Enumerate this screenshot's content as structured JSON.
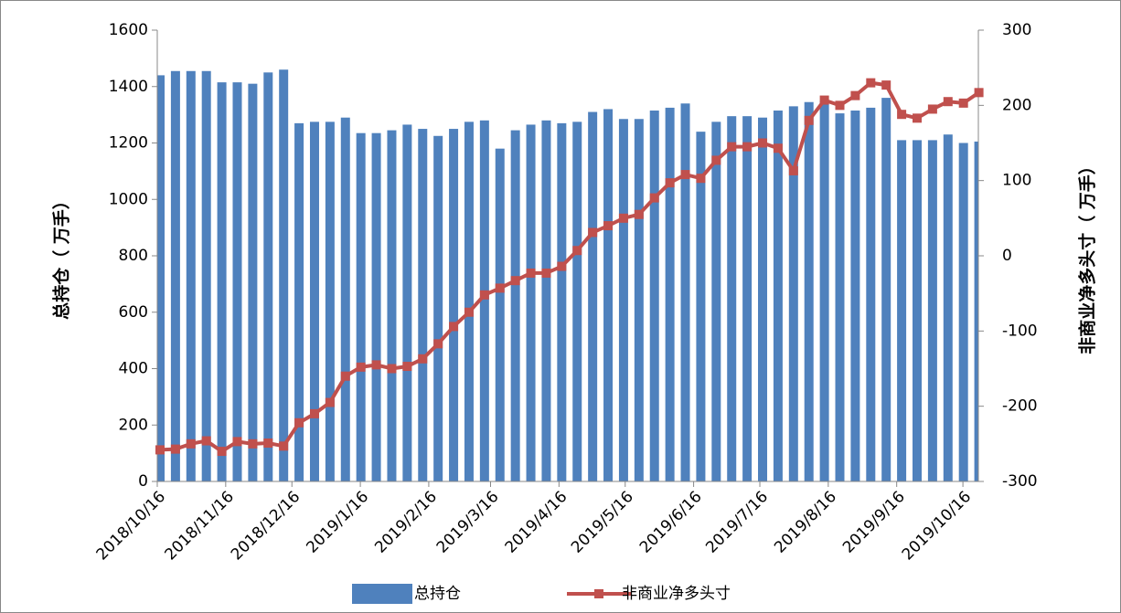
{
  "chart_data": {
    "type": "bar-line",
    "ylabel": "总持仓（ 万手）",
    "y2label": "非商业净多头寸（ 万手）",
    "x": [
      "2018/10/16",
      "2018/10/23",
      "2018/10/30",
      "2018/11/6",
      "2018/11/13",
      "2018/11/20",
      "2018/11/27",
      "2018/12/4",
      "2018/12/11",
      "2018/12/18",
      "2018/12/25",
      "2019/1/1",
      "2019/1/8",
      "2019/1/15",
      "2019/1/22",
      "2019/1/29",
      "2019/2/5",
      "2019/2/12",
      "2019/2/19",
      "2019/2/26",
      "2019/3/5",
      "2019/3/12",
      "2019/3/19",
      "2019/3/26",
      "2019/4/2",
      "2019/4/9",
      "2019/4/16",
      "2019/4/23",
      "2019/4/30",
      "2019/5/7",
      "2019/5/14",
      "2019/5/21",
      "2019/5/28",
      "2019/6/4",
      "2019/6/11",
      "2019/6/18",
      "2019/6/25",
      "2019/7/2",
      "2019/7/9",
      "2019/7/16",
      "2019/7/23",
      "2019/7/30",
      "2019/8/6",
      "2019/8/13",
      "2019/8/20",
      "2019/8/27",
      "2019/9/3",
      "2019/9/10",
      "2019/9/17",
      "2019/9/24",
      "2019/10/1",
      "2019/10/8",
      "2019/10/15",
      "2019/10/22"
    ],
    "xlim": [
      "2018/10/16",
      "2019/10/23"
    ],
    "xticks": [
      "2018/10/16",
      "2018/11/16",
      "2018/12/16",
      "2019/1/16",
      "2019/2/16",
      "2019/3/16",
      "2019/4/16",
      "2019/5/16",
      "2019/6/16",
      "2019/7/16",
      "2019/8/16",
      "2019/9/16",
      "2019/10/16"
    ],
    "ylim": [
      0,
      1600
    ],
    "yticks": [
      0,
      200,
      400,
      600,
      800,
      1000,
      1200,
      1400,
      1600
    ],
    "y2lim": [
      -300,
      300
    ],
    "y2ticks": [
      -300,
      -200,
      -100,
      0,
      100,
      200,
      300
    ],
    "series": [
      {
        "name": "总持仓",
        "kind": "bar",
        "color": "#4f81bd",
        "values": [
          1440,
          1455,
          1455,
          1455,
          1415,
          1415,
          1410,
          1450,
          1460,
          1270,
          1275,
          1275,
          1290,
          1235,
          1235,
          1245,
          1265,
          1250,
          1225,
          1250,
          1275,
          1280,
          1180,
          1245,
          1265,
          1280,
          1270,
          1275,
          1310,
          1320,
          1285,
          1285,
          1315,
          1325,
          1340,
          1240,
          1275,
          1295,
          1295,
          1290,
          1315,
          1330,
          1345,
          1350,
          1305,
          1315,
          1325,
          1360,
          1210,
          1210,
          1210,
          1230,
          1200,
          1205
        ]
      },
      {
        "name": "非商业净多头寸",
        "kind": "line",
        "axis": "y2",
        "color": "#c0504d",
        "values": [
          -258,
          -257,
          -250,
          -246,
          -260,
          -247,
          -250,
          -249,
          -253,
          -222,
          -210,
          -195,
          -160,
          -148,
          -145,
          -150,
          -147,
          -137,
          -117,
          -94,
          -75,
          -52,
          -43,
          -33,
          -23,
          -23,
          -14,
          7,
          31,
          40,
          50,
          55,
          77,
          97,
          108,
          103,
          127,
          145,
          145,
          150,
          143,
          113,
          180,
          207,
          200,
          213,
          230,
          227,
          188,
          183,
          195,
          205,
          203,
          217
        ]
      }
    ]
  }
}
